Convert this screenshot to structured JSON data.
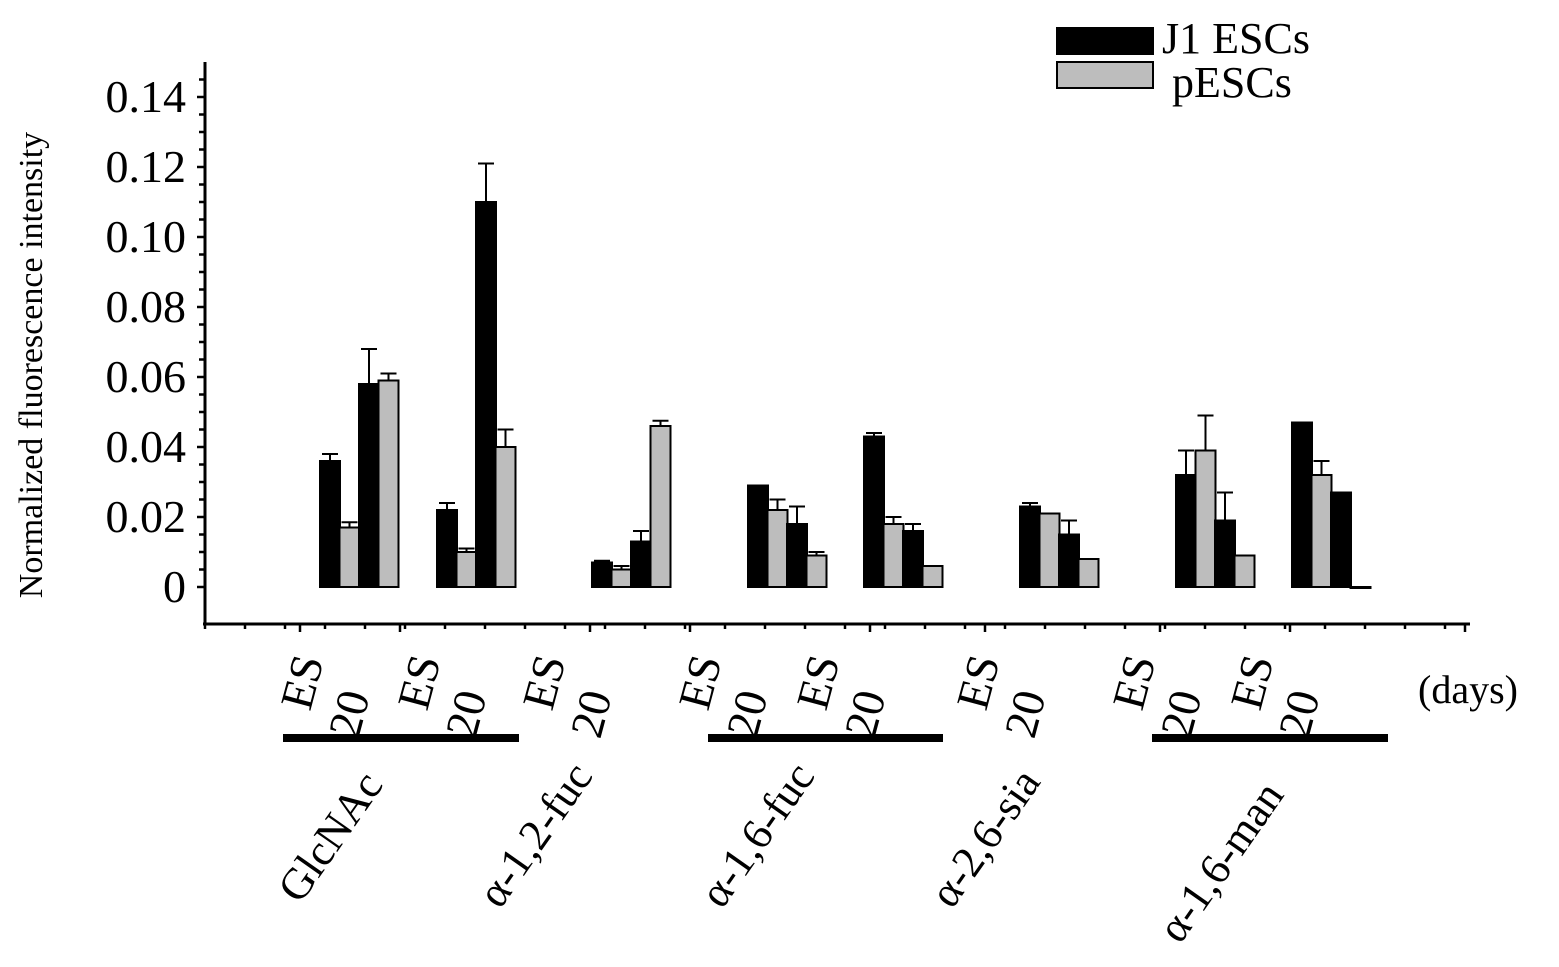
{
  "chart_data": {
    "type": "bar",
    "title": "",
    "ylabel": "Normalized fluorescence intensity",
    "xlabel": "",
    "ylim": [
      -0.01,
      0.15
    ],
    "yticks": [
      0,
      0.02,
      0.04,
      0.06,
      0.08,
      0.1,
      0.12,
      0.14
    ],
    "ytick_labels": [
      "0",
      "0.02",
      "0.04",
      "0.06",
      "0.08",
      "0.10",
      "0.12",
      "0.14"
    ],
    "x_unit_label": "(days)",
    "legend": {
      "position": "top-right",
      "entries": [
        "J1 ESCs",
        "pESCs"
      ]
    },
    "colors": {
      "J1 ESCs": "#000000",
      "pESCs": "#bdbdbd"
    },
    "lectin_groups": [
      "GlcNAc",
      "α-1,2-fuc",
      "α-1,6-fuc",
      "α-2,6-sia",
      "α-1,6-man"
    ],
    "time_points": [
      "ES",
      "20"
    ],
    "panels": [
      {
        "group": "GlcNAc",
        "bars": [
          {
            "series": "J1 ESCs",
            "time": "ES",
            "value": 0.036,
            "error": 0.002
          },
          {
            "series": "pESCs",
            "time": "ES",
            "value": 0.017,
            "error": 0.0015
          },
          {
            "series": "J1 ESCs",
            "time": "20",
            "value": 0.058,
            "error": 0.01
          },
          {
            "series": "pESCs",
            "time": "20",
            "value": 0.059,
            "error": 0.002
          }
        ]
      },
      {
        "group": "GlcNAc",
        "bars": [
          {
            "series": "J1 ESCs",
            "time": "ES",
            "value": 0.022,
            "error": 0.002
          },
          {
            "series": "pESCs",
            "time": "ES",
            "value": 0.01,
            "error": 0.001
          },
          {
            "series": "J1 ESCs",
            "time": "20",
            "value": 0.11,
            "error": 0.011
          },
          {
            "series": "pESCs",
            "time": "20",
            "value": 0.04,
            "error": 0.005
          }
        ]
      },
      {
        "group": "α-1,2-fuc",
        "bars": [
          {
            "series": "J1 ESCs",
            "time": "ES",
            "value": 0.007,
            "error": 0.0005
          },
          {
            "series": "pESCs",
            "time": "ES",
            "value": 0.005,
            "error": 0.001
          },
          {
            "series": "J1 ESCs",
            "time": "20",
            "value": 0.013,
            "error": 0.003
          },
          {
            "series": "pESCs",
            "time": "20",
            "value": 0.046,
            "error": 0.0015
          }
        ]
      },
      {
        "group": "α-1,6-fuc",
        "bars": [
          {
            "series": "J1 ESCs",
            "time": "ES",
            "value": 0.029,
            "error": 0
          },
          {
            "series": "pESCs",
            "time": "ES",
            "value": 0.022,
            "error": 0.003
          },
          {
            "series": "J1 ESCs",
            "time": "20",
            "value": 0.018,
            "error": 0.005
          },
          {
            "series": "pESCs",
            "time": "20",
            "value": 0.009,
            "error": 0.001
          }
        ]
      },
      {
        "group": "α-1,6-fuc",
        "bars": [
          {
            "series": "J1 ESCs",
            "time": "ES",
            "value": 0.043,
            "error": 0.001
          },
          {
            "series": "pESCs",
            "time": "ES",
            "value": 0.018,
            "error": 0.002
          },
          {
            "series": "J1 ESCs",
            "time": "20",
            "value": 0.016,
            "error": 0.002
          },
          {
            "series": "pESCs",
            "time": "20",
            "value": 0.006,
            "error": 0
          }
        ]
      },
      {
        "group": "α-2,6-sia",
        "bars": [
          {
            "series": "J1 ESCs",
            "time": "ES",
            "value": 0.023,
            "error": 0.001
          },
          {
            "series": "pESCs",
            "time": "ES",
            "value": 0.021,
            "error": 0
          },
          {
            "series": "J1 ESCs",
            "time": "20",
            "value": 0.015,
            "error": 0.004
          },
          {
            "series": "pESCs",
            "time": "20",
            "value": 0.008,
            "error": 0
          }
        ]
      },
      {
        "group": "α-1,6-man",
        "bars": [
          {
            "series": "J1 ESCs",
            "time": "ES",
            "value": 0.032,
            "error": 0.007
          },
          {
            "series": "pESCs",
            "time": "ES",
            "value": 0.039,
            "error": 0.01
          },
          {
            "series": "J1 ESCs",
            "time": "20",
            "value": 0.019,
            "error": 0.008
          },
          {
            "series": "pESCs",
            "time": "20",
            "value": 0.009,
            "error": 0
          }
        ]
      },
      {
        "group": "α-1,6-man",
        "bars": [
          {
            "series": "J1 ESCs",
            "time": "ES",
            "value": 0.047,
            "error": 0
          },
          {
            "series": "pESCs",
            "time": "ES",
            "value": 0.032,
            "error": 0.004
          },
          {
            "series": "J1 ESCs",
            "time": "20",
            "value": 0.027,
            "error": 0
          },
          {
            "series": "pESCs",
            "time": "20",
            "value": 0,
            "error": 0
          }
        ]
      }
    ],
    "group_spans": [
      {
        "group": "GlcNAc",
        "panels": [
          0,
          1
        ]
      },
      {
        "group": "α-1,2-fuc",
        "panels": [
          2
        ]
      },
      {
        "group": "α-1,6-fuc",
        "panels": [
          3,
          4
        ]
      },
      {
        "group": "α-2,6-sia",
        "panels": [
          5
        ]
      },
      {
        "group": "α-1,6-man",
        "panels": [
          6,
          7
        ]
      }
    ]
  }
}
